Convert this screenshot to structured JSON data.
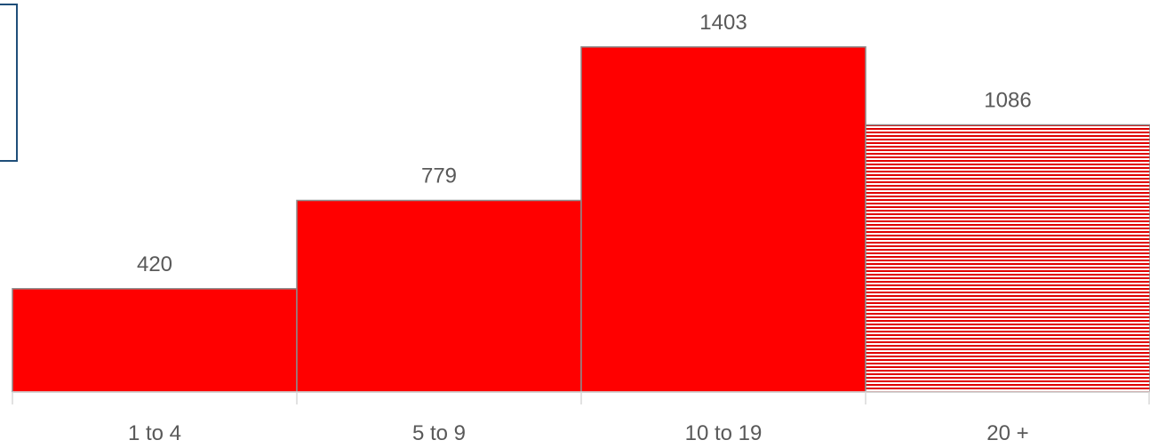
{
  "chart_data": {
    "type": "bar",
    "categories": [
      "1 to 4",
      "5 to 9",
      "10 to 19",
      "20 +"
    ],
    "values": [
      420,
      779,
      1403,
      1086
    ],
    "data_labels": [
      "420",
      "779",
      "1403",
      "1086"
    ],
    "title": "",
    "xlabel": "",
    "ylabel": "",
    "ylim": [
      0,
      1500
    ],
    "grid": false,
    "bar_gap": "none",
    "colors": {
      "bar_fill": "#ff0000",
      "bar_border": "#8c8c8c",
      "last_bar_pattern": "horizontal-stripes",
      "stripe_color": "#e00000",
      "stripe_bg": "#ffffff",
      "axis": "#d9d9d9",
      "label_text": "#595959",
      "frame_border": "#1f4e79"
    }
  }
}
